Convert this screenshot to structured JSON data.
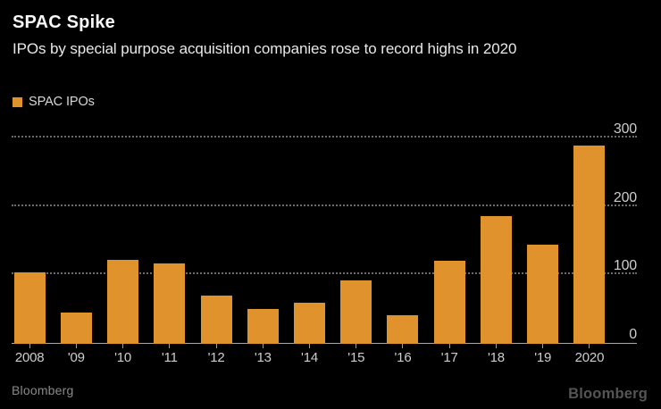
{
  "header": {
    "title": "SPAC Spike",
    "subtitle": "IPOs by special purpose acquisition companies rose to record highs in 2020"
  },
  "legend": {
    "label": "SPAC IPOs",
    "swatch_color": "#E0922D"
  },
  "footer": {
    "source": "Bloomberg",
    "brand": "Bloomberg"
  },
  "colors": {
    "background": "#000000",
    "bar": "#E0922D",
    "grid_dotted": "#6A6A6A",
    "axis_line": "#A9A9A9",
    "title_text": "#F7F7F7",
    "subtitle_text": "#E8E8E8",
    "axis_label_text": "#CDCDCD",
    "source_text": "#8A8A8A",
    "brand_text": "#555557"
  },
  "chart_data": {
    "type": "bar",
    "title": "SPAC Spike",
    "subtitle": "IPOs by special purpose acquisition companies rose to record highs in 2020",
    "series_name": "SPAC IPOs",
    "categories": [
      "2008",
      "'09",
      "'10",
      "'11",
      "'12",
      "'13",
      "'14",
      "'15",
      "'16",
      "'17",
      "'18",
      "'19",
      "2020"
    ],
    "values": [
      105,
      46,
      122,
      118,
      70,
      51,
      60,
      93,
      42,
      121,
      186,
      145,
      290
    ],
    "xlabel": "",
    "ylabel": "",
    "ylim": [
      0,
      300
    ],
    "yticks": [
      0,
      100,
      200,
      300
    ],
    "value_axis_side": "right",
    "grid": "horizontal dotted",
    "legend_position": "top-left",
    "bar_color": "#E0922D",
    "background": "#000000"
  }
}
